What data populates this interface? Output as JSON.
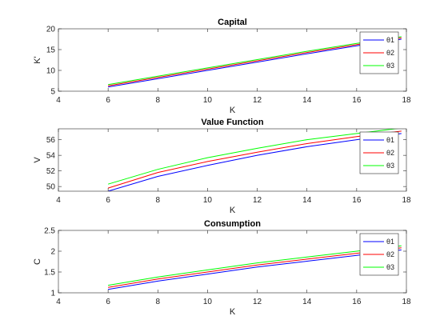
{
  "chart_data": [
    {
      "type": "line",
      "title": "Capital",
      "xlabel": "K",
      "ylabel": "K'",
      "xlim": [
        4,
        18
      ],
      "ylim": [
        5,
        20
      ],
      "xticks": [
        "4",
        "6",
        "8",
        "10",
        "12",
        "14",
        "16",
        "18"
      ],
      "yticks": [
        "5",
        "10",
        "15",
        "20"
      ],
      "legend_position": "top-right",
      "x": [
        6,
        8,
        10,
        12,
        14,
        16,
        17.8
      ],
      "series": [
        {
          "name": "θ1",
          "color": "#0000ff",
          "values": [
            6.0,
            8.0,
            10.0,
            12.0,
            14.0,
            15.9,
            17.5
          ]
        },
        {
          "name": "θ2",
          "color": "#ff0000",
          "values": [
            6.3,
            8.3,
            10.3,
            12.3,
            14.3,
            16.2,
            17.8
          ]
        },
        {
          "name": "θ3",
          "color": "#00ff00",
          "values": [
            6.6,
            8.6,
            10.6,
            12.6,
            14.6,
            16.5,
            18.1
          ]
        }
      ]
    },
    {
      "type": "line",
      "title": "Value Function",
      "xlabel": "K",
      "ylabel": "V",
      "xlim": [
        4,
        18
      ],
      "ylim": [
        49.4,
        57.4
      ],
      "xticks": [
        "4",
        "6",
        "8",
        "10",
        "12",
        "14",
        "16",
        "18"
      ],
      "yticks": [
        "50",
        "52",
        "54",
        "56"
      ],
      "legend_position": "top-right",
      "x": [
        6,
        8,
        10,
        12,
        14,
        16,
        17.8
      ],
      "series": [
        {
          "name": "θ1",
          "color": "#0000ff",
          "values": [
            49.4,
            51.3,
            52.7,
            54.0,
            55.1,
            56.0,
            56.8
          ]
        },
        {
          "name": "θ2",
          "color": "#ff0000",
          "values": [
            49.8,
            51.8,
            53.2,
            54.4,
            55.5,
            56.4,
            57.1
          ]
        },
        {
          "name": "θ3",
          "color": "#00ff00",
          "values": [
            50.3,
            52.2,
            53.7,
            54.9,
            56.0,
            56.8,
            57.5
          ]
        }
      ]
    },
    {
      "type": "line",
      "title": "Consumption",
      "xlabel": "K",
      "ylabel": "C",
      "xlim": [
        4,
        18
      ],
      "ylim": [
        1,
        2.5
      ],
      "xticks": [
        "4",
        "6",
        "8",
        "10",
        "12",
        "14",
        "16",
        "18"
      ],
      "yticks": [
        "1",
        "1.5",
        "2",
        "2.5"
      ],
      "legend_position": "top-right",
      "x": [
        6,
        8,
        10,
        12,
        14,
        16,
        17.8
      ],
      "series": [
        {
          "name": "θ1",
          "color": "#0000ff",
          "values": [
            1.08,
            1.28,
            1.45,
            1.62,
            1.76,
            1.9,
            2.03
          ]
        },
        {
          "name": "θ2",
          "color": "#ff0000",
          "values": [
            1.13,
            1.33,
            1.5,
            1.67,
            1.81,
            1.95,
            2.08
          ]
        },
        {
          "name": "θ3",
          "color": "#00ff00",
          "values": [
            1.18,
            1.38,
            1.55,
            1.72,
            1.86,
            2.0,
            2.13
          ]
        }
      ]
    }
  ]
}
